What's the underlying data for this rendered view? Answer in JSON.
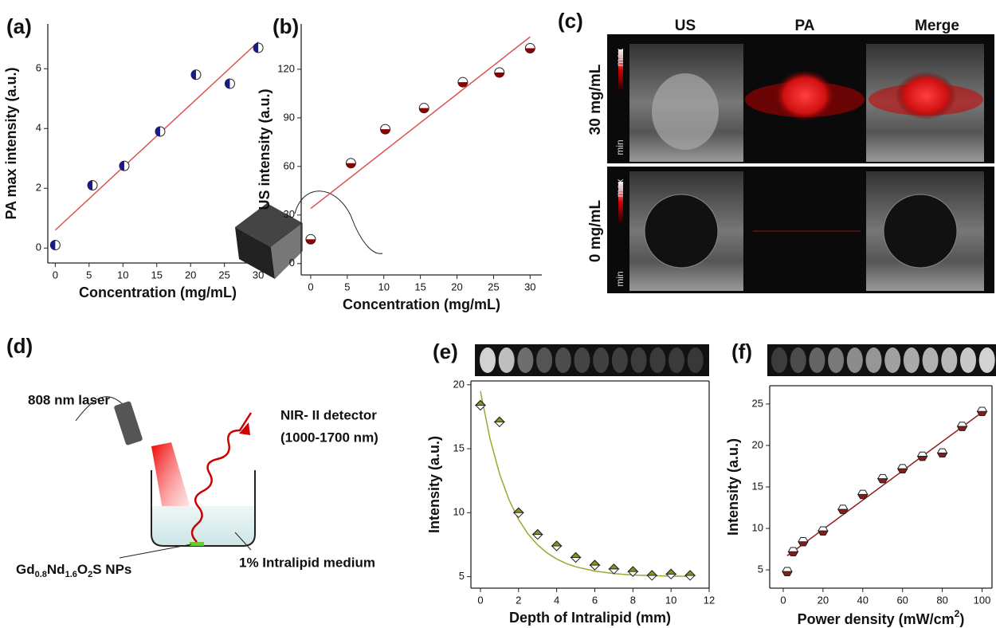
{
  "chart_data": [
    {
      "type": "scatter",
      "panel": "(a)",
      "xlabel": "Concentration (mg/mL)",
      "ylabel": "PA max intensity (a.u.)",
      "x": [
        0,
        5.5,
        10.2,
        15.5,
        20.8,
        25.8,
        30
      ],
      "values": [
        0.1,
        2.1,
        2.75,
        3.9,
        5.8,
        5.5,
        6.7
      ],
      "color": "#1a1a8c",
      "marker": "circle-left",
      "fit": {
        "x": [
          0,
          30
        ],
        "y": [
          0.6,
          6.9
        ],
        "color": "#d9534f"
      },
      "xlim": [
        -1.1,
        31.4
      ],
      "ylim": [
        -0.5,
        7.5
      ],
      "xticks": [
        0,
        5,
        10,
        15,
        20,
        25,
        30
      ],
      "yticks": [
        0,
        2,
        4,
        6
      ],
      "frame": "open"
    },
    {
      "type": "scatter",
      "panel": "(b)",
      "xlabel": "Concentration (mg/mL)",
      "ylabel": "US intensity (a.u.)",
      "x": [
        0,
        5.5,
        10.2,
        15.5,
        20.8,
        25.8,
        30
      ],
      "values": [
        15,
        62,
        83,
        96,
        112,
        118,
        133
      ],
      "color": "#8b0000",
      "marker": "circle-bottom",
      "fit": {
        "x": [
          0,
          30
        ],
        "y": [
          34,
          140
        ],
        "color": "#d9534f"
      },
      "xlim": [
        -1.3,
        31.6
      ],
      "ylim": [
        -7,
        148
      ],
      "xticks": [
        0,
        5,
        10,
        15,
        20,
        25,
        30
      ],
      "yticks": [
        0,
        30,
        60,
        90,
        120
      ],
      "frame": "open"
    },
    {
      "type": "scatter",
      "panel": "(e)",
      "xlabel": "Depth of Intralipid (mm)",
      "ylabel": "Intensity (a.u.)",
      "x": [
        0,
        1,
        2,
        3,
        4,
        5,
        6,
        7,
        8,
        9,
        10,
        11
      ],
      "values": [
        18.4,
        17.1,
        10,
        8.3,
        7.4,
        6.5,
        5.9,
        5.6,
        5.4,
        5.1,
        5.2,
        5.1
      ],
      "color": "#8f8f1f",
      "marker": "diamond-top",
      "fit": {
        "x": [
          0,
          0.5,
          1,
          1.5,
          2,
          2.5,
          3,
          3.5,
          4,
          4.5,
          5,
          6,
          7,
          8,
          9,
          10,
          11
        ],
        "y": [
          19.5,
          15.8,
          13.05,
          11,
          9.47,
          8.33,
          7.48,
          6.85,
          6.38,
          6.03,
          5.77,
          5.43,
          5.24,
          5.13,
          5.07,
          5.04,
          5.02
        ],
        "color": "#9aa832"
      },
      "xlim": [
        -0.5,
        12
      ],
      "ylim": [
        4.1,
        20.3
      ],
      "xticks": [
        0,
        2,
        4,
        6,
        8,
        10,
        12
      ],
      "yticks": [
        5,
        10,
        15,
        20
      ],
      "frame": "box"
    },
    {
      "type": "scatter",
      "panel": "(f)",
      "xlabel": {
        "text": "Power density (mW/cm",
        "sup": "2",
        "tail": ")"
      },
      "ylabel": "Intensity (a.u.)",
      "x": [
        2,
        5,
        10,
        20,
        30,
        40,
        50,
        60,
        70,
        80,
        90,
        100
      ],
      "values": [
        4.8,
        7.2,
        8.4,
        9.7,
        12.3,
        14.1,
        16,
        17.2,
        18.7,
        19.1,
        22.3,
        24.1
      ],
      "color": "#8b1a1a",
      "marker": "hexagon-bottom",
      "fit": {
        "x": [
          2,
          100
        ],
        "y": [
          6.7,
          24
        ],
        "color": "#8b1a1a"
      },
      "xlim": [
        -6.8,
        105
      ],
      "ylim": [
        2.8,
        27.2
      ],
      "xticks": [
        0,
        20,
        40,
        60,
        80,
        100
      ],
      "yticks": [
        5,
        10,
        15,
        20,
        25
      ],
      "frame": "box"
    }
  ],
  "panel_c": {
    "panel": "(c)",
    "columns": [
      "US",
      "PA",
      "Merge"
    ],
    "rows": [
      "30 mg/mL",
      "0 mg/mL"
    ],
    "scale_max": "max",
    "scale_min": "min"
  },
  "panel_d": {
    "panel": "(d)",
    "laser": "808 nm laser",
    "detector": "NIR- II detector",
    "detector_range": "(1000-1700 nm)",
    "medium": "1% Intralipid medium",
    "nanoparticles": [
      "Gd",
      "0.8",
      "Nd",
      "1.6",
      "O",
      "2",
      "S NPs"
    ]
  }
}
